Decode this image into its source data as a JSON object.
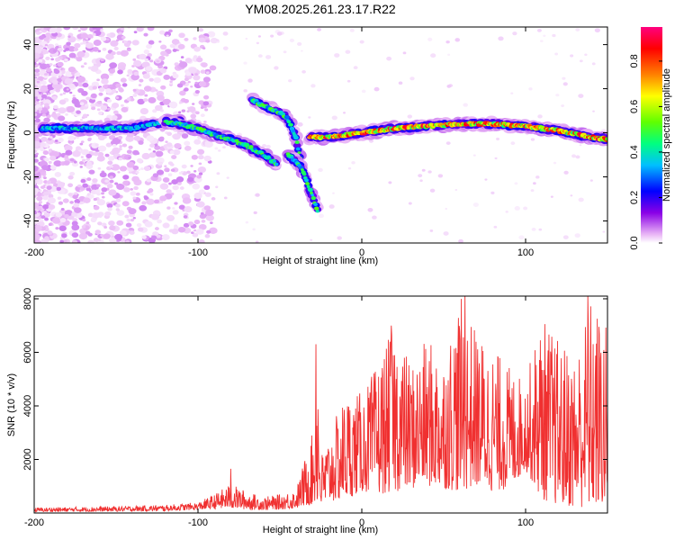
{
  "title": "YM08.2025.261.23.17.R22",
  "chart_data": [
    {
      "type": "heatmap",
      "name": "spectrogram",
      "xlabel": "Height of straight line (km)",
      "ylabel": "Frequency (Hz)",
      "xlim": [
        -200,
        150
      ],
      "ylim": [
        -50,
        48
      ],
      "xticks": [
        -200,
        -100,
        0,
        100
      ],
      "yticks": [
        -40,
        -20,
        0,
        20,
        40
      ],
      "colorbar": {
        "label": "Normalized spectral amplitude",
        "range": [
          0,
          0.95
        ],
        "ticks": [
          0.0,
          0.2,
          0.4,
          0.6,
          0.8
        ],
        "colormap": [
          "#ffffff",
          "#e9b6f6",
          "#8a00e6",
          "#0000ff",
          "#00bfff",
          "#00ff80",
          "#60ff00",
          "#ffff00",
          "#ff8000",
          "#ff0000",
          "#ff007f"
        ]
      },
      "features": [
        {
          "name": "main-track-left",
          "x": [
            -195,
            -180,
            -160,
            -140,
            -120,
            -110
          ],
          "y": [
            2,
            2,
            2,
            2,
            5,
            5
          ]
        },
        {
          "name": "descending-track",
          "x": [
            -120,
            -105,
            -90,
            -80,
            -70,
            -60,
            -52
          ],
          "y": [
            5,
            3,
            -1,
            -3,
            -6,
            -10,
            -14
          ]
        },
        {
          "name": "upper-branch",
          "x": [
            -67,
            -62,
            -56,
            -50,
            -46,
            -43,
            -40,
            -37
          ],
          "y": [
            15,
            13,
            11,
            9,
            7,
            3,
            -3,
            -14
          ]
        },
        {
          "name": "lower-branch",
          "x": [
            -45,
            -40,
            -37,
            -34,
            -31,
            -29,
            -27
          ],
          "y": [
            -10,
            -13,
            -16,
            -21,
            -27,
            -31,
            -35
          ]
        },
        {
          "name": "main-track-right",
          "x": [
            -32,
            -20,
            0,
            20,
            40,
            60,
            80,
            100,
            120,
            140,
            150
          ],
          "y": [
            -2,
            -2,
            0,
            2,
            3,
            4,
            4,
            3,
            1,
            -2,
            -3
          ]
        }
      ]
    },
    {
      "type": "line",
      "name": "snr",
      "xlabel": "Height of straight line (km)",
      "ylabel": "SNR (10 * v/v)",
      "xlim": [
        -200,
        150
      ],
      "ylim": [
        0,
        8100
      ],
      "xticks": [
        -200,
        -100,
        0,
        100
      ],
      "yticks": [
        2000,
        4000,
        6000,
        8000
      ],
      "line_color": "#f03030",
      "envelope": {
        "x": [
          -200,
          -150,
          -120,
          -100,
          -90,
          -80,
          -70,
          -60,
          -50,
          -40,
          -35,
          -30,
          -27,
          -25,
          -20,
          -10,
          0,
          10,
          20,
          30,
          40,
          50,
          60,
          70,
          80,
          90,
          100,
          110,
          120,
          130,
          140,
          150
        ],
        "low": [
          50,
          60,
          80,
          120,
          150,
          180,
          130,
          110,
          130,
          180,
          250,
          300,
          300,
          200,
          400,
          500,
          800,
          700,
          800,
          900,
          1000,
          900,
          800,
          1000,
          800,
          900,
          1600,
          500,
          300,
          200,
          200,
          200
        ],
        "high": [
          200,
          250,
          300,
          400,
          700,
          1100,
          800,
          600,
          700,
          900,
          2000,
          3000,
          6300,
          2200,
          2900,
          4500,
          4500,
          5600,
          7000,
          5600,
          6500,
          6000,
          8100,
          6800,
          6200,
          5500,
          5000,
          7400,
          6500,
          6000,
          8100,
          7000
        ]
      },
      "spikes": [
        {
          "x": -28,
          "y": 6300
        },
        {
          "x": -80,
          "y": 1650
        },
        {
          "x": 63,
          "y": 8100
        },
        {
          "x": 138,
          "y": 8100
        },
        {
          "x": 18,
          "y": 7000
        }
      ]
    }
  ]
}
